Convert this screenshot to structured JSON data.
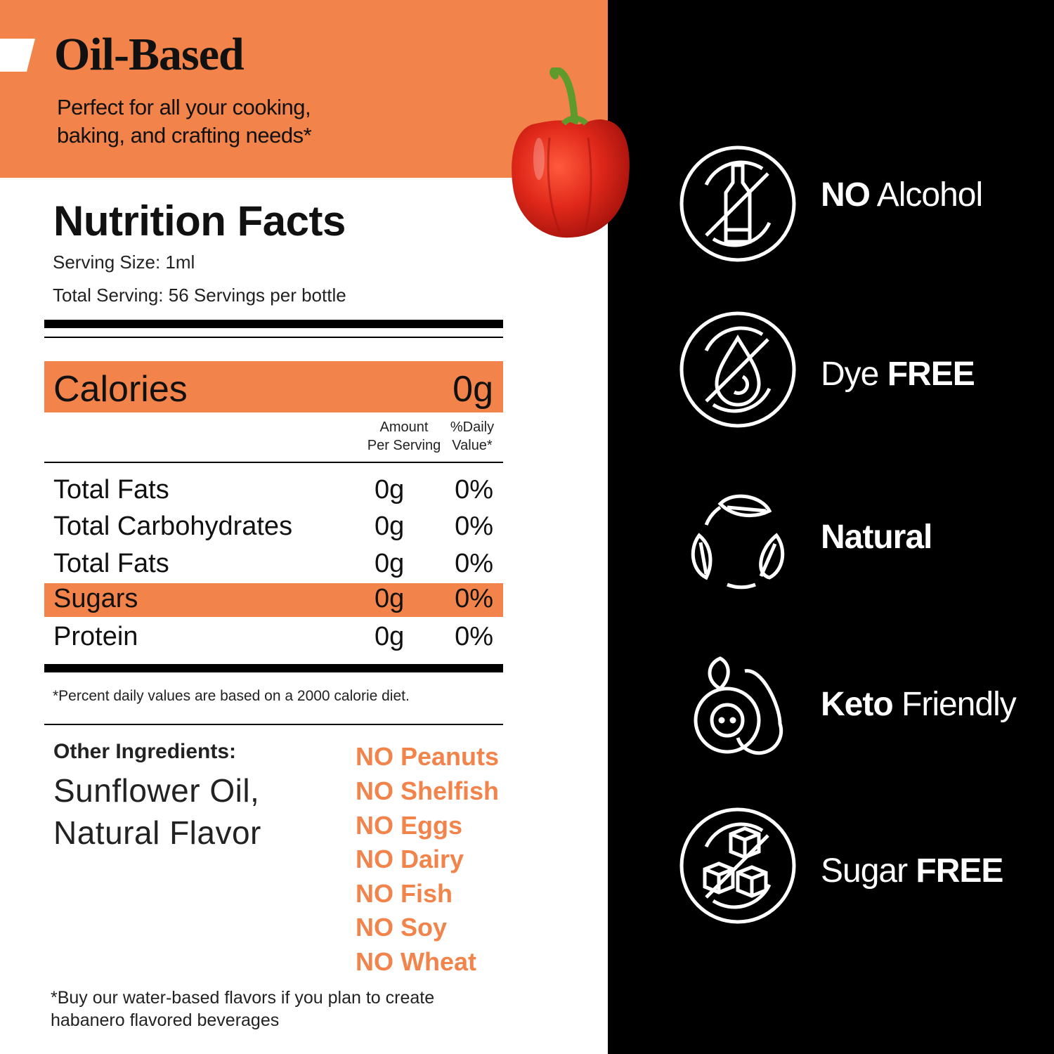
{
  "header": {
    "title": "Oil-Based",
    "subtitle_lines": [
      "Perfect for all your cooking,",
      "baking, and crafting needs*"
    ]
  },
  "colors": {
    "accent": "#F2834A",
    "dark": "#000000"
  },
  "nutrition": {
    "title": "Nutrition Facts",
    "serving_size": "Serving Size: 1ml",
    "total_serving": "Total Serving: 56 Servings per bottle",
    "calories": {
      "label": "Calories",
      "value": "0g"
    },
    "column_headers": {
      "amount": [
        "Amount",
        "Per Serving"
      ],
      "daily": [
        "%Daily",
        "Value*"
      ]
    },
    "rows": [
      {
        "name": "Total Fats",
        "amount": "0g",
        "daily": "0%"
      },
      {
        "name": "Total Carbohydrates",
        "amount": "0g",
        "daily": "0%"
      },
      {
        "name": "Total Fats",
        "amount": "0g",
        "daily": "0%"
      },
      {
        "name": "Sugars",
        "amount": "0g",
        "daily": "0%",
        "highlighted": true
      },
      {
        "name": "Protein",
        "amount": "0g",
        "daily": "0%"
      }
    ],
    "footnote": "*Percent daily values are based on a 2000 calorie diet."
  },
  "ingredients": {
    "label": "Other Ingredients:",
    "lines": [
      "Sunflower Oil,",
      "Natural Flavor"
    ]
  },
  "allergens": [
    "NO Peanuts",
    "NO Shelfish",
    "NO Eggs",
    "NO Dairy",
    "NO Fish",
    "NO Soy",
    "NO Wheat"
  ],
  "bottom_note": [
    "*Buy our water-based flavors if you plan to create",
    "habanero flavored beverages"
  ],
  "badges": [
    {
      "icon": "no-alcohol-bottle-icon",
      "regular_before": "",
      "bold": "NO",
      "regular_after": " Alcohol"
    },
    {
      "icon": "no-dye-drop-icon",
      "regular_before": "Dye ",
      "bold": "FREE",
      "regular_after": ""
    },
    {
      "icon": "natural-leaves-icon",
      "regular_before": "",
      "bold": "Natural",
      "regular_after": ""
    },
    {
      "icon": "keto-avocado-icon",
      "regular_before": "",
      "bold": "Keto",
      "regular_after": " Friendly"
    },
    {
      "icon": "no-sugar-cubes-icon",
      "regular_before": "Sugar ",
      "bold": "FREE",
      "regular_after": ""
    }
  ]
}
